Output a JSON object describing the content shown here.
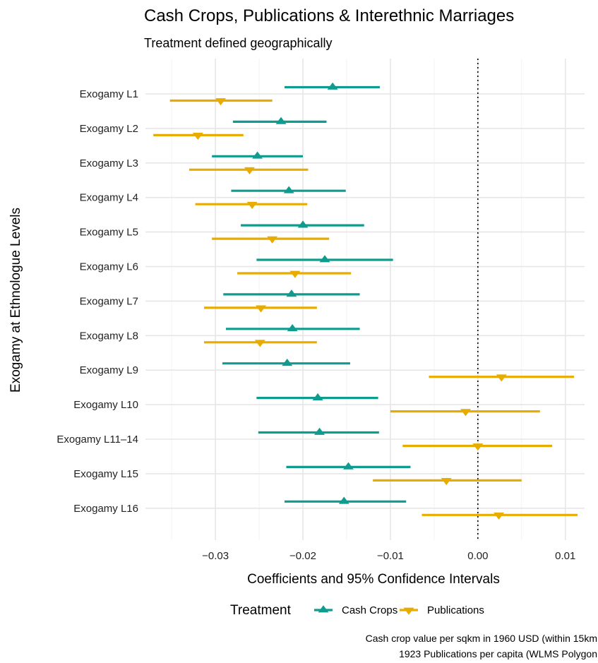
{
  "chart_data": {
    "type": "coefficient-plot",
    "title": "Cash Crops, Publications & Interethnic Marriages",
    "subtitle": "Treatment defined geographically",
    "xlabel": "Coefficients and 95% Confidence Intervals",
    "ylabel": "Exogamy at Ethnologue Levels",
    "xlim": [
      -0.038,
      0.0122
    ],
    "x_ticks": [
      -0.03,
      -0.02,
      -0.01,
      0.0,
      0.01
    ],
    "x_tick_labels": [
      "−0.03",
      "−0.02",
      "−0.01",
      "0.00",
      "0.01"
    ],
    "reference_line": 0.0,
    "categories": [
      "Exogamy L1",
      "Exogamy L2",
      "Exogamy L3",
      "Exogamy L4",
      "Exogamy L5",
      "Exogamy L6",
      "Exogamy L7",
      "Exogamy L8",
      "Exogamy L9",
      "Exogamy L10",
      "Exogamy L11–14",
      "Exogamy L15",
      "Exogamy L16"
    ],
    "series": [
      {
        "name": "Cash Crops",
        "color": "#0f9b8e",
        "marker": "triangle-up",
        "estimate": [
          -0.0166,
          -0.0225,
          -0.0252,
          -0.0216,
          -0.02,
          -0.0175,
          -0.0213,
          -0.0212,
          -0.0218,
          -0.0183,
          -0.0181,
          -0.0148,
          -0.0153
        ],
        "ci_low": [
          -0.0221,
          -0.028,
          -0.0304,
          -0.0282,
          -0.0271,
          -0.0253,
          -0.0291,
          -0.0288,
          -0.0292,
          -0.0253,
          -0.0251,
          -0.0219,
          -0.0221
        ],
        "ci_high": [
          -0.0112,
          -0.0173,
          -0.02,
          -0.0151,
          -0.013,
          -0.0097,
          -0.0135,
          -0.0135,
          -0.0146,
          -0.0114,
          -0.0113,
          -0.0077,
          -0.0082
        ]
      },
      {
        "name": "Publications",
        "color": "#e8ab00",
        "marker": "triangle-down",
        "estimate": [
          -0.0294,
          -0.032,
          -0.0261,
          -0.0258,
          -0.0235,
          -0.0209,
          -0.0248,
          -0.0249,
          0.0027,
          -0.0014,
          0.0,
          -0.0036,
          0.0024
        ],
        "ci_low": [
          -0.0352,
          -0.0371,
          -0.033,
          -0.0323,
          -0.0304,
          -0.0275,
          -0.0313,
          -0.0313,
          -0.0056,
          -0.01,
          -0.0086,
          -0.012,
          -0.0064
        ],
        "ci_high": [
          -0.0235,
          -0.0268,
          -0.0194,
          -0.0195,
          -0.017,
          -0.0145,
          -0.0184,
          -0.0184,
          0.011,
          0.0071,
          0.0085,
          0.005,
          0.0114
        ]
      }
    ],
    "legend": {
      "title": "Treatment",
      "position": "bottom"
    },
    "grid": true,
    "caption": [
      "Cash crop value per sqkm in 1960 USD (within 15km",
      "1923 Publications per capita (WLMS Polygon"
    ]
  }
}
